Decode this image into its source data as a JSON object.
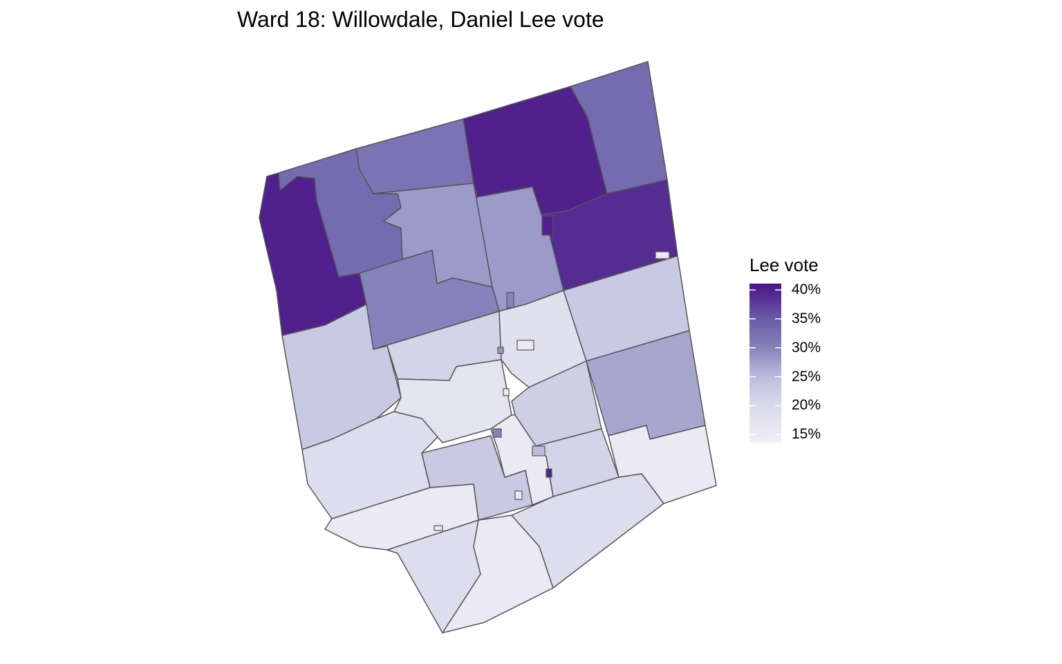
{
  "chart_data": {
    "type": "choropleth",
    "title": "Ward 18: Willowdale, Daniel Lee vote",
    "legend": {
      "title": "Lee vote",
      "placement": "right",
      "ticks": [
        "15%",
        "20%",
        "25%",
        "30%",
        "35%",
        "40%"
      ],
      "tick_values": [
        15,
        20,
        25,
        30,
        35,
        40
      ],
      "range": [
        13.6,
        41.1
      ],
      "palette": [
        "#f0eef6",
        "#dadaeb",
        "#bcbddc",
        "#8583bb",
        "#6b5ba8",
        "#4a1486"
      ]
    },
    "border_color": "#555555",
    "region_values": [
      40,
      33,
      32,
      28,
      40,
      33,
      39,
      28,
      30,
      23,
      21,
      23,
      27,
      15,
      19,
      17,
      18,
      22,
      21,
      23,
      15,
      19,
      15,
      19,
      15
    ],
    "small_area_values": [
      40,
      30,
      28,
      15,
      40,
      25,
      15,
      15,
      15,
      30,
      15
    ]
  }
}
